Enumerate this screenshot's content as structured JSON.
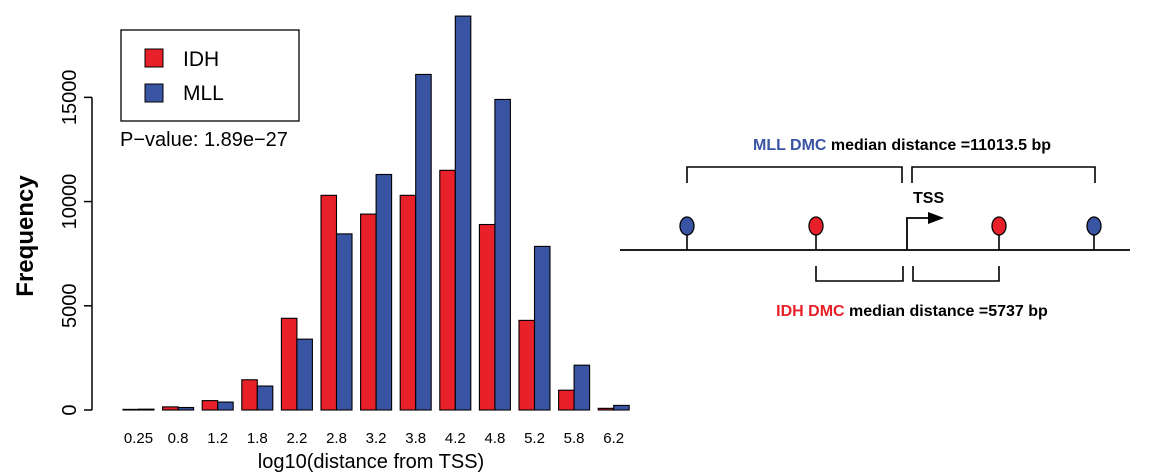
{
  "chart_data": {
    "type": "bar",
    "title": "",
    "xlabel": "log10(distance from TSS)",
    "ylabel": "Frequency",
    "categories": [
      "0.25",
      "0.8",
      "1.2",
      "1.8",
      "2.2",
      "2.8",
      "3.2",
      "3.8",
      "4.2",
      "4.8",
      "5.2",
      "5.8",
      "6.2"
    ],
    "series": [
      {
        "name": "IDH",
        "color": "#e8202a",
        "values": [
          30,
          150,
          450,
          1450,
          4400,
          10300,
          9400,
          10300,
          11500,
          8900,
          4300,
          950,
          80
        ]
      },
      {
        "name": "MLL",
        "color": "#3a54a4",
        "values": [
          40,
          120,
          380,
          1150,
          3400,
          8450,
          11300,
          16100,
          18900,
          14900,
          7850,
          2150,
          220
        ]
      }
    ],
    "yticks": [
      "0",
      "5000",
      "10000",
      "15000"
    ],
    "ylim": [
      0,
      19000
    ],
    "legend": {
      "position": "top-left",
      "entries": [
        "IDH",
        "MLL"
      ]
    },
    "annotation": "P−value: 1.89e−27"
  },
  "diagram": {
    "mll_prefix": "MLL DMC",
    "mll_suffix": " median distance =11013.5 bp",
    "idh_prefix": "IDH DMC",
    "idh_suffix": " median distance =5737 bp",
    "tss_label": "TSS",
    "colors": {
      "mll": "#3a54a4",
      "idh": "#e8202a"
    }
  }
}
